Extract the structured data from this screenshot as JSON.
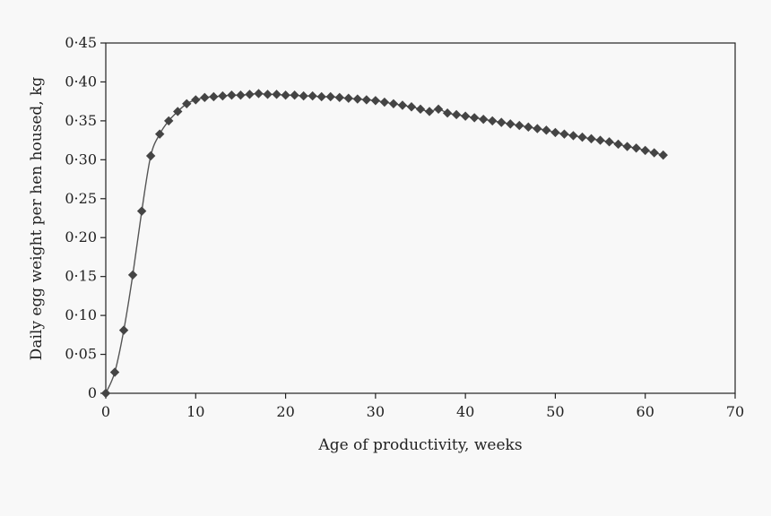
{
  "chart_data": {
    "type": "line",
    "title": "",
    "xlabel": "Age of productivity, weeks",
    "ylabel": "Daily egg weight per hen housed, kg",
    "xlim": [
      0,
      70
    ],
    "ylim": [
      0,
      0.45
    ],
    "x_ticks": [
      0,
      10,
      20,
      30,
      40,
      50,
      60,
      70
    ],
    "x_tick_labels": [
      "0",
      "10",
      "20",
      "30",
      "40",
      "50",
      "60",
      "70"
    ],
    "y_ticks": [
      0,
      0.05,
      0.1,
      0.15,
      0.2,
      0.25,
      0.3,
      0.35,
      0.4,
      0.45
    ],
    "y_tick_labels": [
      "0",
      "0·05",
      "0·10",
      "0·15",
      "0·20",
      "0·25",
      "0·30",
      "0·35",
      "0·40",
      "0·45"
    ],
    "grid": false,
    "legend": "none",
    "colors": {
      "line": "#555555",
      "marker": "#444444",
      "axis": "#222222"
    },
    "marker": "diamond",
    "series": [
      {
        "x": [
          0,
          1,
          2,
          3,
          4,
          5,
          6,
          7,
          8,
          9,
          10,
          11,
          12,
          13,
          14,
          15,
          16,
          17,
          18,
          19,
          20,
          21,
          22,
          23,
          24,
          25,
          26,
          27,
          28,
          29,
          30,
          31,
          32,
          33,
          34,
          35,
          36,
          37,
          38,
          39,
          40,
          41,
          42,
          43,
          44,
          45,
          46,
          47,
          48,
          49,
          50,
          51,
          52,
          53,
          54,
          55,
          56,
          57,
          58,
          59,
          60,
          61,
          62
        ],
        "values": [
          0,
          0.027,
          0.081,
          0.152,
          0.234,
          0.305,
          0.333,
          0.35,
          0.362,
          0.372,
          0.377,
          0.38,
          0.381,
          0.382,
          0.383,
          0.383,
          0.384,
          0.385,
          0.384,
          0.384,
          0.383,
          0.383,
          0.382,
          0.382,
          0.381,
          0.381,
          0.38,
          0.379,
          0.378,
          0.377,
          0.376,
          0.374,
          0.372,
          0.37,
          0.368,
          0.365,
          0.362,
          0.365,
          0.36,
          0.358,
          0.356,
          0.354,
          0.352,
          0.35,
          0.348,
          0.346,
          0.344,
          0.342,
          0.34,
          0.338,
          0.335,
          0.333,
          0.331,
          0.329,
          0.327,
          0.325,
          0.323,
          0.32,
          0.317,
          0.315,
          0.312,
          0.309,
          0.306
        ]
      }
    ]
  }
}
